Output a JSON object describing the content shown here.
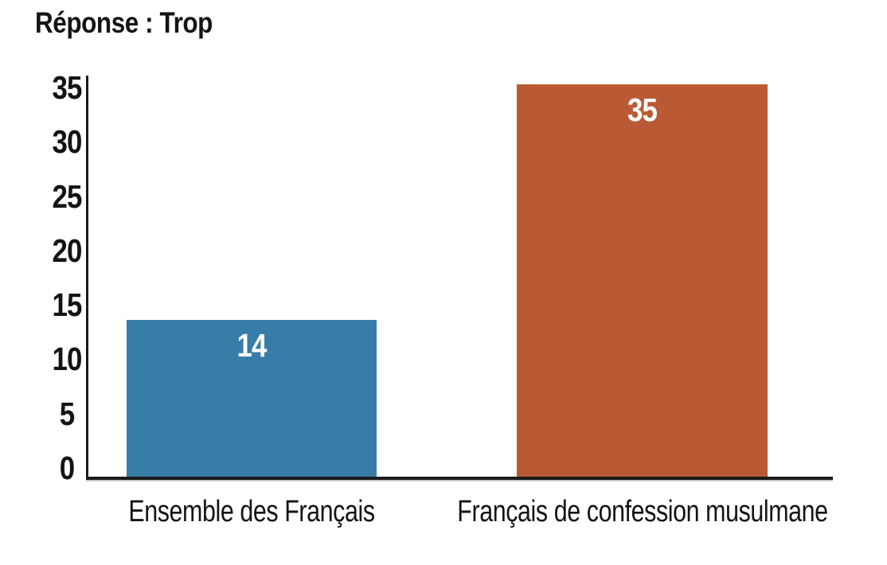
{
  "title": "Réponse : Trop",
  "colors": {
    "background": "#ffffff",
    "axis": "#1a1a1a",
    "axis_shadow": "#c9c9c9",
    "text": "#141414",
    "bar_blue": "#387CA8",
    "bar_rust": "#BA5A34",
    "value_label_text": "#ffffff"
  },
  "chart_data": {
    "type": "bar",
    "title": "Réponse : Trop",
    "categories": [
      "Ensemble des Français",
      "Français de confession musulmane"
    ],
    "values": [
      14,
      35
    ],
    "value_labels": [
      "14",
      "35"
    ],
    "series_colors": [
      "#387CA8",
      "#BA5A34"
    ],
    "xlabel": "",
    "ylabel": "",
    "ylim": [
      0,
      35
    ],
    "yticks": [
      0,
      5,
      10,
      15,
      20,
      25,
      30,
      35
    ],
    "grid": false,
    "legend": null,
    "value_label_position": "inside-top",
    "value_label_color": "#ffffff"
  }
}
